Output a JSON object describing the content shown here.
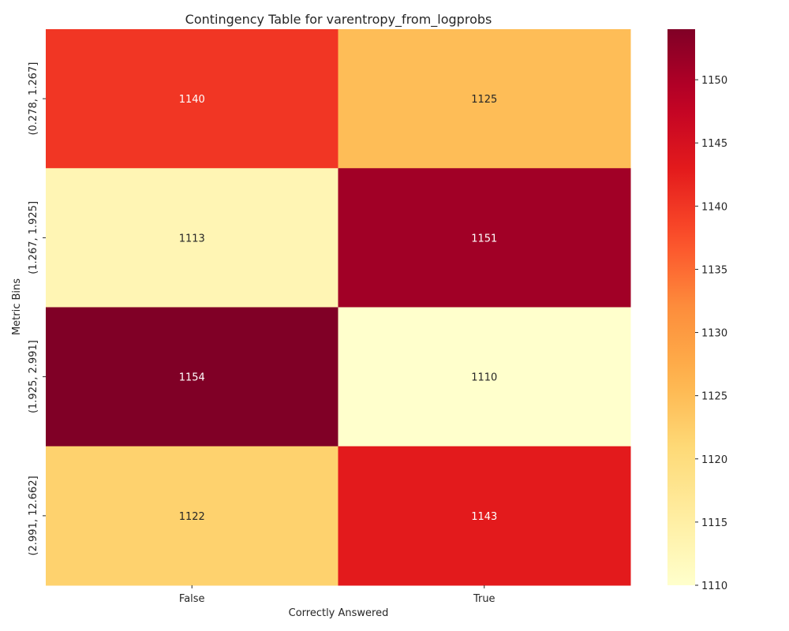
{
  "chart_data": {
    "type": "heatmap",
    "title": "Contingency Table for varentropy_from_logprobs",
    "xlabel": "Correctly Answered",
    "ylabel": "Metric Bins",
    "x_categories": [
      "False",
      "True"
    ],
    "y_categories": [
      "(0.278, 1.267]",
      "(1.267, 1.925]",
      "(1.925, 2.991]",
      "(2.991, 12.662]"
    ],
    "values": [
      [
        1140,
        1125
      ],
      [
        1113,
        1151
      ],
      [
        1154,
        1110
      ],
      [
        1122,
        1143
      ]
    ],
    "colormap": "YlOrRd",
    "colorbar": {
      "vmin": 1110,
      "vmax": 1154,
      "ticks": [
        1110,
        1115,
        1120,
        1125,
        1130,
        1135,
        1140,
        1145,
        1150
      ]
    }
  }
}
